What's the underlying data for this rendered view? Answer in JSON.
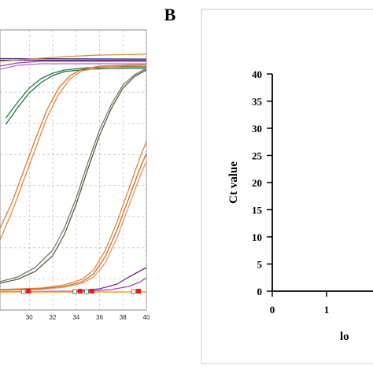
{
  "panel_b_label": "B",
  "chart_data": [
    {
      "type": "line",
      "xlim": [
        27.5,
        40
      ],
      "x_ticks": [
        "30",
        "32",
        "34",
        "36",
        "38",
        "40"
      ],
      "grid": true,
      "threshold_line": true,
      "series": [
        {
          "color": "#5a1a6e",
          "points": [
            [
              27.5,
              76.5
            ],
            [
              40,
              76.5
            ]
          ]
        },
        {
          "color": "#2e2e8a",
          "points": [
            [
              27.5,
              74.5
            ],
            [
              40,
              75
            ]
          ]
        },
        {
          "color": "#8a4a9a",
          "points": [
            [
              27.5,
              84
            ],
            [
              29,
              80
            ],
            [
              31,
              78
            ],
            [
              40,
              78
            ]
          ]
        },
        {
          "color": "#b06ad0",
          "points": [
            [
              27.5,
              88
            ],
            [
              29,
              83
            ],
            [
              31,
              81
            ],
            [
              40,
              81
            ]
          ]
        },
        {
          "color": "#e08a3a",
          "points": [
            [
              27.5,
              78
            ],
            [
              30,
              75
            ],
            [
              33,
              72
            ],
            [
              36,
              70
            ],
            [
              40,
              69
            ]
          ]
        },
        {
          "color": "#1f7a4a",
          "points": [
            [
              28,
              150
            ],
            [
              29,
              130
            ],
            [
              30,
              112
            ],
            [
              31,
              100
            ],
            [
              32,
              93
            ],
            [
              33,
              89
            ],
            [
              35,
              86
            ],
            [
              37,
              85
            ],
            [
              40,
              85
            ]
          ]
        },
        {
          "color": "#2a6a3e",
          "points": [
            [
              28,
              158
            ],
            [
              29,
              137
            ],
            [
              30,
              118
            ],
            [
              31,
              105
            ],
            [
              32,
              96
            ],
            [
              33,
              91
            ],
            [
              35,
              88
            ],
            [
              37,
              87
            ],
            [
              40,
              87
            ]
          ]
        },
        {
          "color": "#e0873a",
          "points": [
            [
              27.5,
              305
            ],
            [
              28.5,
              270
            ],
            [
              29.5,
              230
            ],
            [
              30.5,
              190
            ],
            [
              31.5,
              150
            ],
            [
              32.5,
              120
            ],
            [
              33.5,
              100
            ],
            [
              34.5,
              90
            ],
            [
              36,
              86
            ],
            [
              38,
              84
            ],
            [
              40,
              84
            ]
          ]
        },
        {
          "color": "#d57a30",
          "points": [
            [
              27.5,
              290
            ],
            [
              28.5,
              258
            ],
            [
              29.5,
              218
            ],
            [
              30.5,
              178
            ],
            [
              31.5,
              140
            ],
            [
              32.5,
              112
            ],
            [
              33.5,
              96
            ],
            [
              34.5,
              88
            ],
            [
              36,
              84
            ],
            [
              38,
              83
            ],
            [
              40,
              82
            ]
          ]
        },
        {
          "color": "#5a5a4a",
          "points": [
            [
              27.5,
              360
            ],
            [
              29,
              355
            ],
            [
              30.5,
              345
            ],
            [
              32,
              325
            ],
            [
              33,
              298
            ],
            [
              34,
              260
            ],
            [
              35,
              215
            ],
            [
              36,
              172
            ],
            [
              37,
              138
            ],
            [
              38,
              112
            ],
            [
              39,
              97
            ],
            [
              40,
              89
            ]
          ]
        },
        {
          "color": "#7a7a6a",
          "points": [
            [
              27.5,
              358
            ],
            [
              29,
              352
            ],
            [
              30.5,
              340
            ],
            [
              32,
              318
            ],
            [
              33,
              290
            ],
            [
              34,
              252
            ],
            [
              35,
              207
            ],
            [
              36,
              165
            ],
            [
              37,
              133
            ],
            [
              38,
              108
            ],
            [
              39,
              95
            ],
            [
              40,
              87
            ]
          ]
        },
        {
          "color": "#e0873a",
          "points": [
            [
              27.5,
              368
            ],
            [
              31,
              366
            ],
            [
              33,
              362
            ],
            [
              34.5,
              355
            ],
            [
              35.5,
              343
            ],
            [
              36.5,
              318
            ],
            [
              37.5,
              282
            ],
            [
              38.5,
              240
            ],
            [
              39.5,
              198
            ],
            [
              40,
              180
            ]
          ]
        },
        {
          "color": "#cc6a2a",
          "points": [
            [
              27.5,
              368
            ],
            [
              31,
              367
            ],
            [
              33,
              364
            ],
            [
              34.5,
              358
            ],
            [
              35.5,
              348
            ],
            [
              36.5,
              326
            ],
            [
              37.5,
              292
            ],
            [
              38.5,
              252
            ],
            [
              39.5,
              212
            ],
            [
              40,
              195
            ]
          ]
        },
        {
          "color": "#e8955a",
          "points": [
            [
              27.5,
              369
            ],
            [
              31,
              368
            ],
            [
              33,
              365
            ],
            [
              34.5,
              360
            ],
            [
              35.5,
              352
            ],
            [
              36.5,
              334
            ],
            [
              37.5,
              302
            ],
            [
              38.5,
              262
            ],
            [
              39.5,
              222
            ],
            [
              40,
              205
            ]
          ]
        },
        {
          "color": "#6a2a7a",
          "points": [
            [
              27.5,
              371
            ],
            [
              34,
              370
            ],
            [
              36,
              367
            ],
            [
              37.5,
              361
            ],
            [
              38.5,
              352
            ],
            [
              39.5,
              344
            ],
            [
              40,
              340
            ]
          ]
        },
        {
          "color": "#9a4aaa",
          "points": [
            [
              27.5,
              371
            ],
            [
              35,
              370
            ],
            [
              37,
              368
            ],
            [
              38.5,
              364
            ],
            [
              39.5,
              358
            ],
            [
              40,
              353
            ]
          ]
        }
      ],
      "markers_x": [
        29.8,
        34.2,
        35.2,
        39.2
      ],
      "marker_colors": {
        "open": "#ffffff",
        "filled": "#e21b1b"
      }
    },
    {
      "type": "scatter",
      "ylabel": "Ct  value",
      "xlabel": "lo",
      "ylim": [
        0,
        40
      ],
      "y_ticks": [
        "0",
        "5",
        "10",
        "15",
        "20",
        "25",
        "30",
        "35",
        "40"
      ],
      "x_ticks": [
        "0",
        "1"
      ],
      "series": []
    }
  ]
}
